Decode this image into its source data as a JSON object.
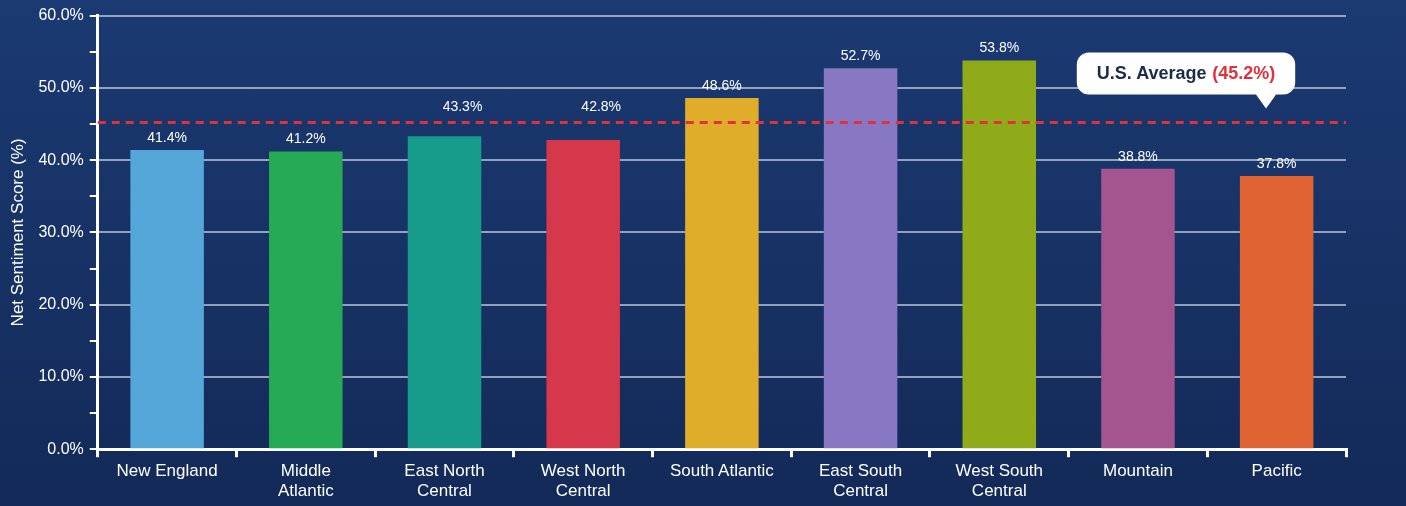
{
  "chart_data": {
    "type": "bar",
    "ylabel": "Net Sentiment Score (%)",
    "categories": [
      "New England",
      "Middle Atlantic",
      "East North Central",
      "West North Central",
      "South Atlantic",
      "East South Central",
      "West South Central",
      "Mountain",
      "Pacific"
    ],
    "values": [
      41.4,
      41.2,
      43.3,
      42.8,
      48.6,
      52.7,
      53.8,
      38.8,
      37.8
    ],
    "colors": [
      "#55a7d9",
      "#27aa55",
      "#179b8a",
      "#d5374b",
      "#dfad29",
      "#8878c3",
      "#8fab1a",
      "#a4558f",
      "#df6232"
    ],
    "value_labels": [
      "41.4%",
      "41.2%",
      "43.3%",
      "42.8%",
      "48.6%",
      "52.7%",
      "53.8%",
      "38.8%",
      "37.8%"
    ],
    "ylim": [
      0,
      60
    ],
    "yticks": [
      {
        "value": 0,
        "label": "0.0%"
      },
      {
        "value": 5,
        "label": null
      },
      {
        "value": 10,
        "label": "10.0%"
      },
      {
        "value": 15,
        "label": null
      },
      {
        "value": 20,
        "label": "20.0%"
      },
      {
        "value": 25,
        "label": null
      },
      {
        "value": 30,
        "label": "30.0%"
      },
      {
        "value": 35,
        "label": null
      },
      {
        "value": 40,
        "label": "40.0%"
      },
      {
        "value": 45,
        "label": null
      },
      {
        "value": 50,
        "label": "50.0%"
      },
      {
        "value": 55,
        "label": null
      },
      {
        "value": 60,
        "label": "60.0%"
      }
    ],
    "ref_lines": [
      {
        "axis": "y",
        "value": 45.2,
        "label": "U.S. Average (45.2%)",
        "color": "#e0323c",
        "line_style": "dashed"
      }
    ],
    "grid": "y",
    "legend": false
  }
}
